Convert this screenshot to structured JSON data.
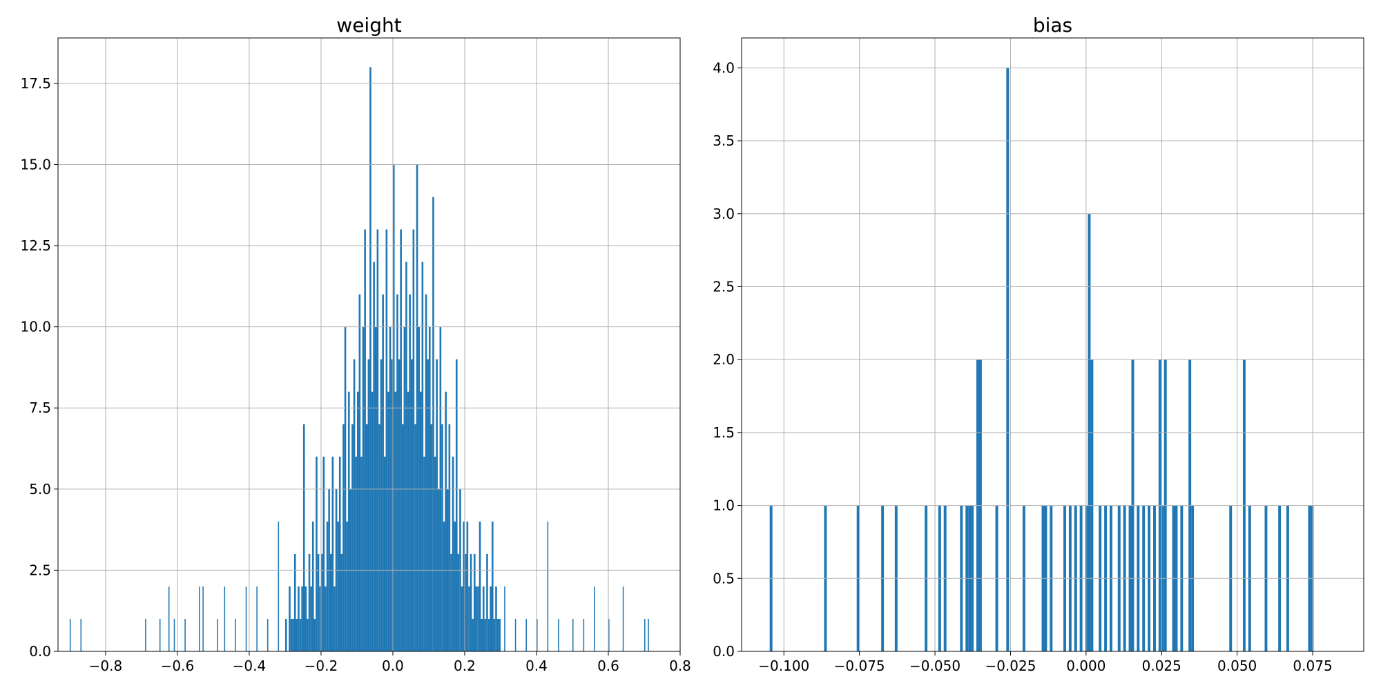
{
  "chart_data": [
    {
      "type": "histogram",
      "title": "weight",
      "color": "#1f77b4",
      "grid": true,
      "bins": [
        -0.9,
        -0.897,
        -0.87,
        -0.867,
        -0.69,
        -0.687,
        -0.65,
        -0.647,
        -0.625,
        -0.622,
        -0.61,
        -0.607,
        -0.58,
        -0.577,
        -0.54,
        -0.537,
        -0.53,
        -0.527,
        -0.49,
        -0.487,
        -0.47,
        -0.467,
        -0.44,
        -0.437,
        -0.41,
        -0.407,
        -0.38,
        -0.377,
        -0.35,
        -0.347,
        -0.32,
        -0.317,
        -0.3,
        -0.295,
        -0.29,
        -0.285,
        -0.28,
        -0.275,
        -0.27,
        -0.265,
        -0.26,
        -0.255,
        -0.25,
        -0.245,
        -0.24,
        -0.235,
        -0.23,
        -0.225,
        -0.22,
        -0.215,
        -0.21,
        -0.205,
        -0.2,
        -0.195,
        -0.19,
        -0.185,
        -0.18,
        -0.175,
        -0.17,
        -0.165,
        -0.16,
        -0.155,
        -0.15,
        -0.145,
        -0.14,
        -0.135,
        -0.13,
        -0.125,
        -0.12,
        -0.115,
        -0.11,
        -0.105,
        -0.1,
        -0.095,
        -0.09,
        -0.085,
        -0.08,
        -0.075,
        -0.07,
        -0.065,
        -0.06,
        -0.055,
        -0.05,
        -0.045,
        -0.04,
        -0.035,
        -0.03,
        -0.025,
        -0.02,
        -0.015,
        -0.01,
        -0.005,
        0,
        0.005,
        0.01,
        0.015,
        0.02,
        0.025,
        0.03,
        0.035,
        0.04,
        0.045,
        0.05,
        0.055,
        0.06,
        0.065,
        0.07,
        0.075,
        0.08,
        0.085,
        0.09,
        0.095,
        0.1,
        0.105,
        0.11,
        0.115,
        0.12,
        0.125,
        0.13,
        0.135,
        0.14,
        0.145,
        0.15,
        0.155,
        0.16,
        0.165,
        0.17,
        0.175,
        0.18,
        0.185,
        0.19,
        0.195,
        0.2,
        0.205,
        0.21,
        0.215,
        0.22,
        0.225,
        0.23,
        0.235,
        0.24,
        0.245,
        0.25,
        0.255,
        0.26,
        0.265,
        0.27,
        0.275,
        0.28,
        0.285,
        0.29,
        0.295,
        0.3,
        0.31,
        0.313,
        0.34,
        0.343,
        0.37,
        0.373,
        0.4,
        0.403,
        0.43,
        0.433,
        0.46,
        0.463,
        0.5,
        0.503,
        0.53,
        0.533,
        0.56,
        0.563,
        0.6,
        0.603,
        0.64,
        0.643,
        0.7,
        0.703,
        0.71,
        0.713
      ],
      "counts": [
        1,
        0,
        1,
        0,
        1,
        0,
        1,
        0,
        2,
        0,
        1,
        0,
        1,
        0,
        2,
        0,
        2,
        0,
        1,
        0,
        2,
        0,
        1,
        0,
        2,
        0,
        2,
        0,
        1,
        0,
        4,
        0,
        1,
        0,
        2,
        1,
        1,
        3,
        1,
        2,
        1,
        2,
        7,
        2,
        1,
        3,
        2,
        4,
        1,
        6,
        3,
        2,
        3,
        6,
        2,
        4,
        5,
        3,
        6,
        2,
        5,
        4,
        6,
        3,
        7,
        10,
        4,
        8,
        5,
        7,
        9,
        6,
        8,
        11,
        6,
        10,
        13,
        7,
        9,
        18,
        8,
        12,
        10,
        13,
        7,
        9,
        11,
        6,
        13,
        8,
        10,
        9,
        15,
        8,
        11,
        9,
        13,
        7,
        10,
        12,
        8,
        11,
        9,
        13,
        7,
        15,
        10,
        8,
        12,
        6,
        11,
        9,
        10,
        7,
        14,
        6,
        9,
        5,
        10,
        7,
        4,
        8,
        5,
        7,
        3,
        6,
        4,
        9,
        3,
        5,
        2,
        4,
        3,
        4,
        2,
        3,
        1,
        3,
        2,
        2,
        4,
        1,
        2,
        1,
        3,
        1,
        2,
        4,
        1,
        2,
        1,
        1,
        0,
        2,
        0,
        1,
        0,
        1,
        0,
        1,
        0,
        4,
        0,
        1,
        0,
        1,
        0,
        1,
        0,
        2,
        0,
        1,
        0,
        2,
        0,
        1,
        0,
        1
      ],
      "xlim": [
        -0.9325,
        0.8
      ],
      "ylim": [
        0,
        18.9
      ],
      "xticks": [
        {
          "value": -0.8,
          "label": "−0.8"
        },
        {
          "value": -0.6,
          "label": "−0.6"
        },
        {
          "value": -0.4,
          "label": "−0.4"
        },
        {
          "value": -0.2,
          "label": "−0.2"
        },
        {
          "value": 0,
          "label": "0.0"
        },
        0.2,
        0.4,
        0.6,
        0.8
      ],
      "yticks": [
        {
          "value": 0,
          "label": "0.0"
        },
        2.5,
        {
          "value": 5,
          "label": "5.0"
        },
        7.5,
        {
          "value": 10,
          "label": "10.0"
        },
        12.5,
        {
          "value": 15,
          "label": "15.0"
        },
        17.5
      ]
    },
    {
      "type": "histogram",
      "title": "bias",
      "color": "#1f77b4",
      "grid": true,
      "bins": [
        -0.1047,
        -0.1038,
        -0.0867,
        -0.0858,
        -0.0759,
        -0.075,
        -0.0678,
        -0.0669,
        -0.0633,
        -0.0624,
        -0.0534,
        -0.0525,
        -0.0489,
        -0.048,
        -0.0471,
        -0.0462,
        -0.0417,
        -0.0408,
        -0.0399,
        -0.039,
        -0.0381,
        -0.0372,
        -0.0363,
        -0.0354,
        -0.0345,
        -0.03,
        -0.0291,
        -0.0264,
        -0.0255,
        -0.021,
        -0.0201,
        -0.0147,
        -0.0138,
        -0.0129,
        -0.012,
        -0.0111,
        -0.0075,
        -0.0066,
        -0.0057,
        -0.0048,
        -0.0039,
        -0.003,
        -0.0021,
        -0.0012,
        -0.0003,
        0.0006,
        0.0015,
        0.0024,
        0.0042,
        0.0051,
        0.006,
        0.0069,
        0.0078,
        0.0087,
        0.0105,
        0.0114,
        0.0123,
        0.0132,
        0.0141,
        0.015,
        0.0159,
        0.0168,
        0.0177,
        0.0186,
        0.0195,
        0.0204,
        0.0213,
        0.0222,
        0.0231,
        0.024,
        0.0249,
        0.0258,
        0.0267,
        0.0285,
        0.0294,
        0.0303,
        0.0312,
        0.0321,
        0.0339,
        0.0348,
        0.0357,
        0.0474,
        0.0483,
        0.0519,
        0.0528,
        0.0537,
        0.0546,
        0.0591,
        0.06,
        0.0636,
        0.0645,
        0.0663,
        0.0672,
        0.0735,
        0.0744,
        0.0753
      ],
      "counts": [
        1,
        0,
        1,
        0,
        1,
        0,
        1,
        0,
        1,
        0,
        1,
        0,
        1,
        0,
        1,
        0,
        1,
        0,
        1,
        1,
        1,
        0,
        2,
        2,
        0,
        1,
        0,
        4,
        0,
        1,
        0,
        1,
        1,
        0,
        1,
        0,
        1,
        0,
        1,
        0,
        1,
        0,
        1,
        0,
        1,
        3,
        2,
        0,
        1,
        0,
        1,
        0,
        1,
        0,
        1,
        0,
        1,
        0,
        1,
        2,
        0,
        1,
        0,
        1,
        0,
        1,
        0,
        1,
        0,
        2,
        1,
        2,
        0,
        1,
        1,
        0,
        1,
        0,
        2,
        1,
        0,
        1,
        0,
        2,
        0,
        1,
        0,
        1,
        0,
        1,
        0,
        1,
        0,
        1,
        1
      ],
      "xlim": [
        -0.114,
        0.0919
      ],
      "ylim": [
        0,
        4.205
      ],
      "xticks": [
        {
          "value": -0.1,
          "label": "−0.100"
        },
        {
          "value": -0.075,
          "label": "−0.075"
        },
        {
          "value": -0.05,
          "label": "−0.050"
        },
        {
          "value": -0.025,
          "label": "−0.025"
        },
        {
          "value": 0,
          "label": "0.000"
        },
        {
          "value": 0.025,
          "label": "0.025"
        },
        {
          "value": 0.05,
          "label": "0.050"
        },
        {
          "value": 0.075,
          "label": "0.075"
        }
      ],
      "yticks": [
        {
          "value": 0,
          "label": "0.0"
        },
        0.5,
        {
          "value": 1,
          "label": "1.0"
        },
        1.5,
        {
          "value": 2,
          "label": "2.0"
        },
        2.5,
        {
          "value": 3,
          "label": "3.0"
        },
        3.5,
        {
          "value": 4,
          "label": "4.0"
        }
      ]
    }
  ]
}
